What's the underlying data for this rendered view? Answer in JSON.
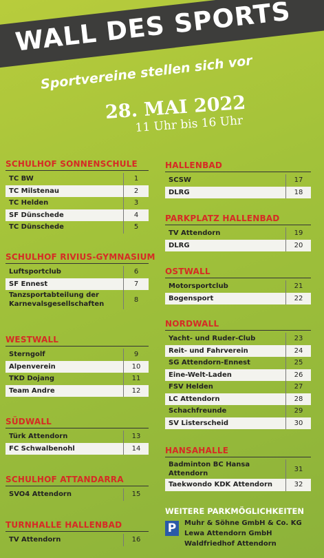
{
  "header": {
    "title": "WALL DES SPORTS",
    "subtitle": "Sportvereine stellen sich vor",
    "date": "28. MAI 2022",
    "time": "11 Uhr bis 16 Uhr"
  },
  "sections": [
    {
      "title": "SCHULHOF SONNENSCHULE",
      "rows": [
        {
          "name": "TC BW",
          "number": 1
        },
        {
          "name": "TC Milstenau",
          "number": 2
        },
        {
          "name": "TC Helden",
          "number": 3
        },
        {
          "name": "SF Dünschede",
          "number": 4
        },
        {
          "name": "TC Dünschede",
          "number": 5
        }
      ]
    },
    {
      "title": "SCHULHOF RIVIUS-GYMNASIUM",
      "rows": [
        {
          "name": "Luftsportclub",
          "number": 6
        },
        {
          "name": "SF Ennest",
          "number": 7
        },
        {
          "name": "Tanzsportabteilung der Karnevalsgesellschaften",
          "number": 8
        }
      ]
    },
    {
      "title": "WESTWALL",
      "rows": [
        {
          "name": "Sterngolf",
          "number": 9
        },
        {
          "name": "Alpenverein",
          "number": 10
        },
        {
          "name": "TKD Dojang",
          "number": 11
        },
        {
          "name": "Team Andre",
          "number": 12
        }
      ]
    },
    {
      "title": "SÜDWALL",
      "rows": [
        {
          "name": "Türk Attendorn",
          "number": 13
        },
        {
          "name": "FC Schwalbenohl",
          "number": 14
        }
      ]
    },
    {
      "title": "SCHULHOF ATTANDARRA",
      "rows": [
        {
          "name": "SVO4 Attendorn",
          "number": 15
        }
      ]
    },
    {
      "title": "TURNHALLE HALLENBAD",
      "rows": [
        {
          "name": "TV Attendorn",
          "number": 16
        }
      ]
    },
    {
      "title": "HALLENBAD",
      "rows": [
        {
          "name": "SCSW",
          "number": 17
        },
        {
          "name": "DLRG",
          "number": 18
        }
      ]
    },
    {
      "title": "PARKPLATZ HALLENBAD",
      "rows": [
        {
          "name": "TV Attendorn",
          "number": 19
        },
        {
          "name": "DLRG",
          "number": 20
        }
      ]
    },
    {
      "title": "OSTWALL",
      "rows": [
        {
          "name": "Motorsportclub",
          "number": 21
        },
        {
          "name": "Bogensport",
          "number": 22
        }
      ]
    },
    {
      "title": "NORDWALL",
      "rows": [
        {
          "name": "Yacht- und Ruder-Club",
          "number": 23
        },
        {
          "name": "Reit- und Fahrverein",
          "number": 24
        },
        {
          "name": "SG Attendorn-Ennest",
          "number": 25
        },
        {
          "name": "Eine-Welt-Laden",
          "number": 26
        },
        {
          "name": "FSV Helden",
          "number": 27
        },
        {
          "name": "LC Attendorn",
          "number": 28
        },
        {
          "name": "Schachfreunde",
          "number": 29
        },
        {
          "name": "SV Listerscheid",
          "number": 30
        }
      ]
    },
    {
      "title": "HANSAHALLE",
      "rows": [
        {
          "name": "Badminton BC Hansa Attendorn",
          "number": 31
        },
        {
          "name": "Taekwondo KDK Attendorn",
          "number": 32
        }
      ]
    }
  ],
  "parking": {
    "title": "WEITERE PARKMÖGLICHKEITEN",
    "icon": "P",
    "lines": [
      "Muhr & Söhne GmbH & Co. KG",
      "Lewa Attendorn GmbH",
      "Waldfriedhof Attendorn"
    ]
  }
}
